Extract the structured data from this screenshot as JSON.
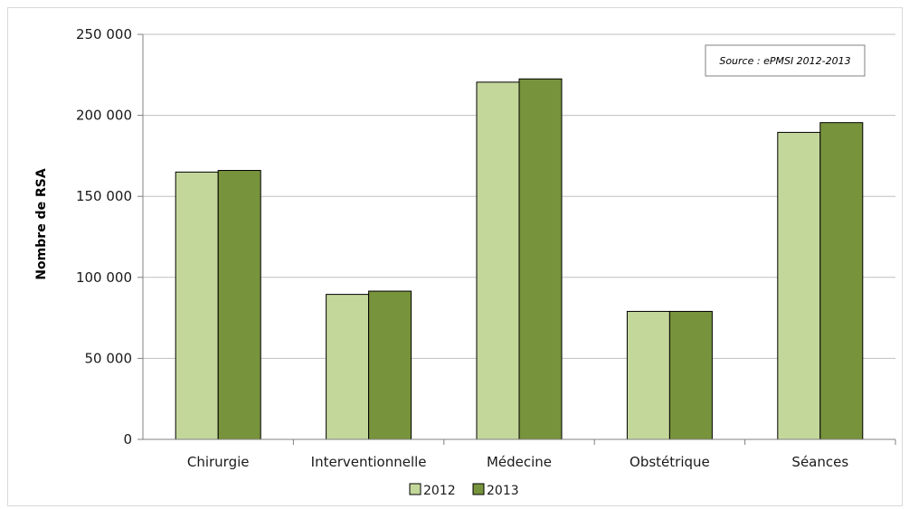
{
  "chart_data": {
    "type": "bar",
    "title": "",
    "xlabel": "",
    "ylabel": "Nombre de RSA",
    "categories": [
      "Chirurgie",
      "Interventionnelle",
      "Médecine",
      "Obstétrique",
      "Séances"
    ],
    "series": [
      {
        "name": "2012",
        "color": "#c4d79b",
        "values": [
          165000,
          89500,
          220500,
          79000,
          189500
        ]
      },
      {
        "name": "2013",
        "color": "#77933c",
        "values": [
          166000,
          91500,
          222500,
          79000,
          195500
        ]
      }
    ],
    "ylim": [
      0,
      250000
    ],
    "yticks": [
      0,
      50000,
      100000,
      150000,
      200000,
      250000
    ],
    "ytick_labels": [
      "0",
      "50 000",
      "100 000",
      "150 000",
      "200 000",
      "250 000"
    ],
    "grid": true,
    "legend_position": "bottom",
    "annotation": "Source : ePMSI 2012-2013"
  }
}
